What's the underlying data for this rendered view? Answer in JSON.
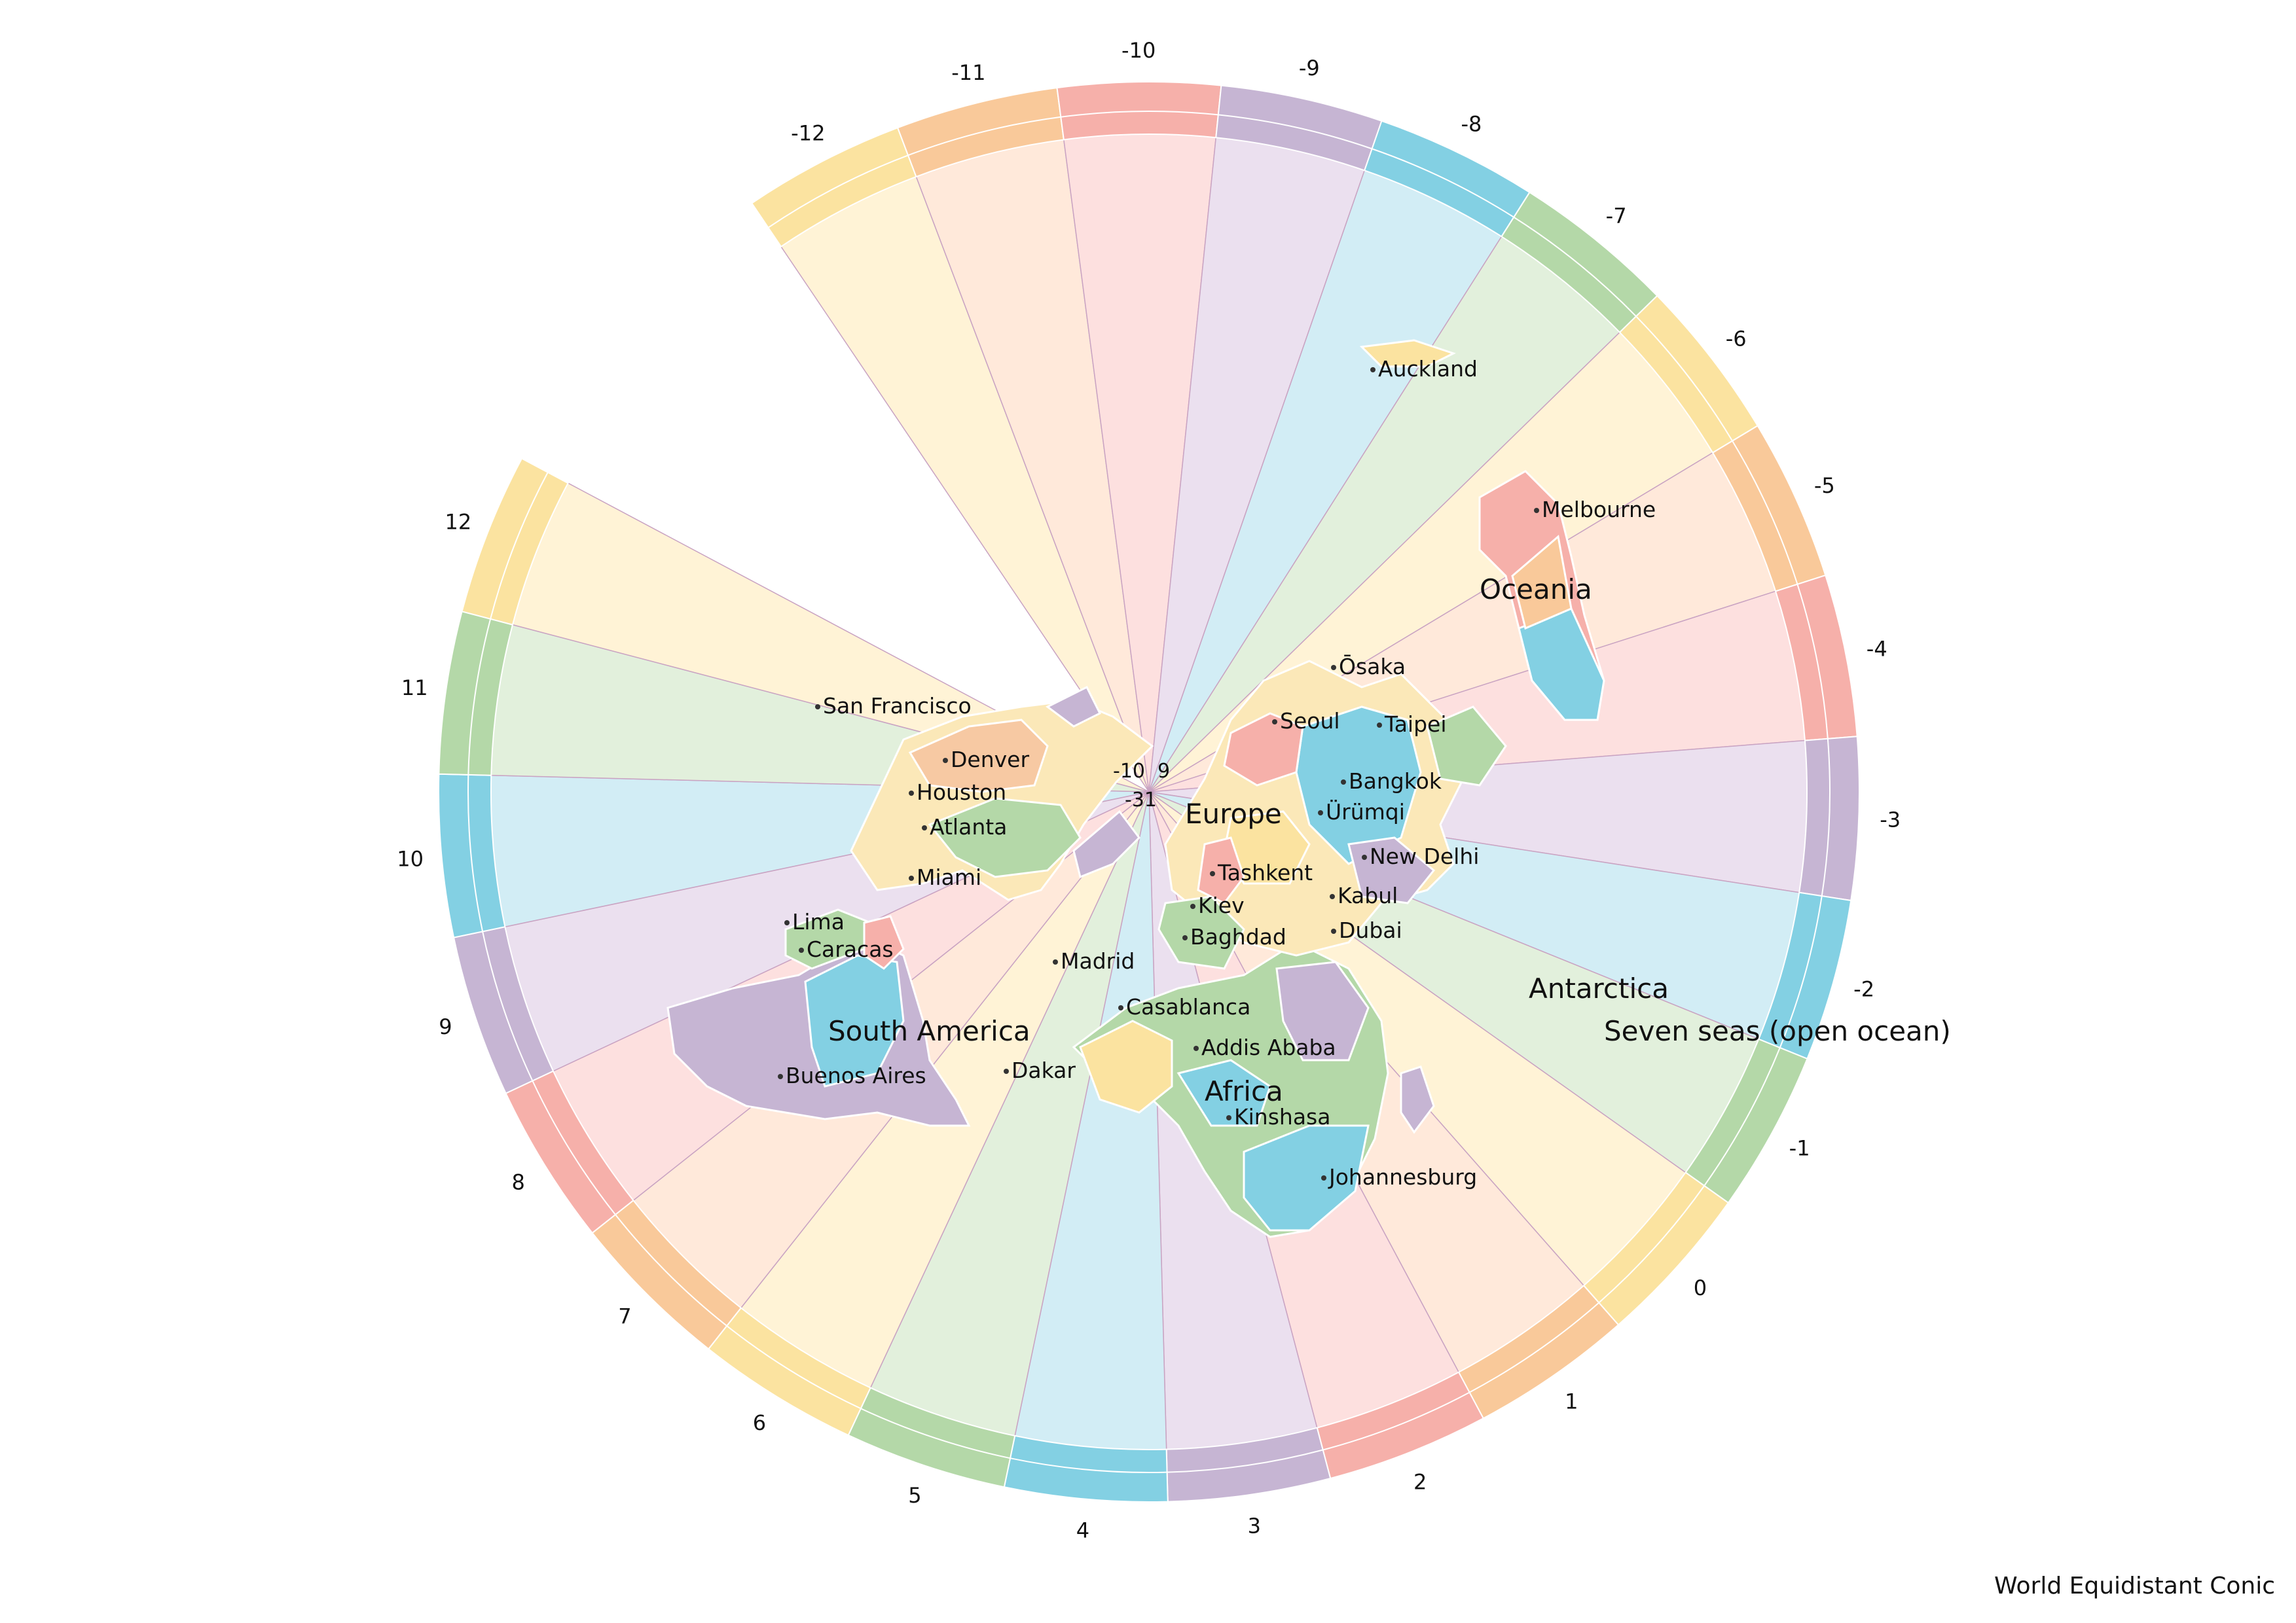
{
  "map": {
    "caption": "World Equidistant Conic",
    "zone_palette": [
      "#fbe3a0",
      "#f9c99a",
      "#f6b0aa",
      "#c6b5d3",
      "#83d0e3",
      "#b4d8a8"
    ],
    "zone_fill_palette": [
      "#fff3d6",
      "#ffe9da",
      "#fde0df",
      "#ebe0ef",
      "#d2edf5",
      "#e2f0dc"
    ],
    "zones": [
      {
        "label": "-12"
      },
      {
        "label": "-11"
      },
      {
        "label": "-10"
      },
      {
        "label": "-9"
      },
      {
        "label": "-8"
      },
      {
        "label": "-7"
      },
      {
        "label": "-6"
      },
      {
        "label": "-5"
      },
      {
        "label": "-4"
      },
      {
        "label": "-3"
      },
      {
        "label": "-2"
      },
      {
        "label": "-1"
      },
      {
        "label": "0"
      },
      {
        "label": "1"
      },
      {
        "label": "2"
      },
      {
        "label": "3"
      },
      {
        "label": "4"
      },
      {
        "label": "5"
      },
      {
        "label": "6"
      },
      {
        "label": "7"
      },
      {
        "label": "8"
      },
      {
        "label": "9"
      },
      {
        "label": "10"
      },
      {
        "label": "11"
      },
      {
        "label": "12"
      }
    ],
    "center_labels": [
      "-10",
      "9",
      "-31"
    ],
    "continents": [
      "Oceania",
      "Europe",
      "Antarctica",
      "Seven seas (open ocean)",
      "South America",
      "Africa"
    ],
    "cities": [
      "Auckland",
      "Melbourne",
      "Ōsaka",
      "Seoul",
      "Taipei",
      "San Francisco",
      "Denver",
      "Bangkok",
      "Houston",
      "Ürümqi",
      "Atlanta",
      "New Delhi",
      "Miami",
      "Tashkent",
      "Kabul",
      "Kiev",
      "Lima",
      "Baghdad",
      "Dubai",
      "Caracas",
      "Madrid",
      "Casablanca",
      "South America",
      "Addis Ababa",
      "Dakar",
      "Buenos Aires",
      "Kinshasa",
      "Johannesburg"
    ]
  }
}
